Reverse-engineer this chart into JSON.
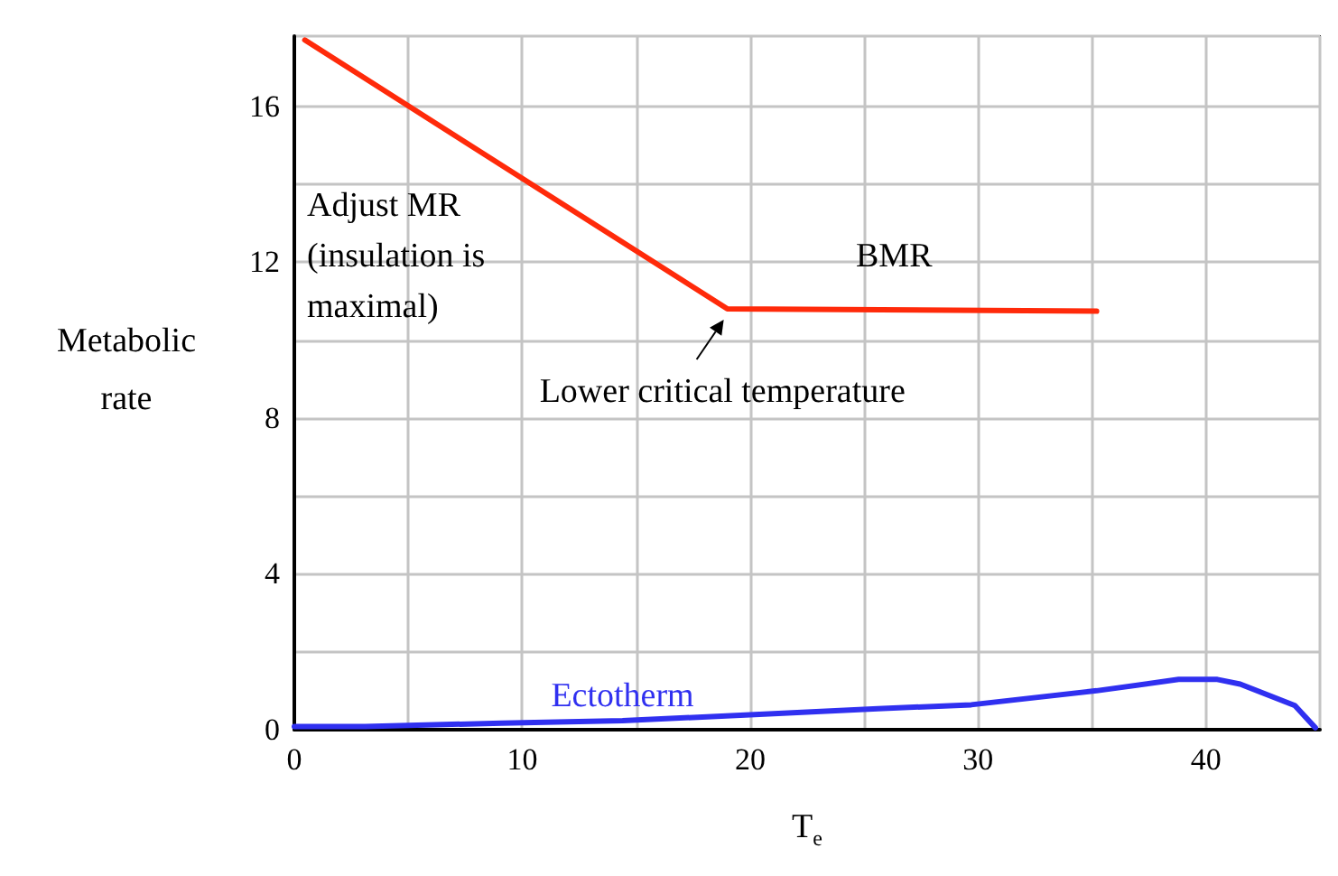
{
  "chart_data": {
    "type": "line",
    "xlabel": "T$_{e}$",
    "ylabel": "Metabolic rate",
    "xlim": [
      0,
      45
    ],
    "xticks": [
      0,
      10,
      20,
      30,
      40
    ],
    "ylim": [
      0,
      17.8
    ],
    "yticks": [
      0,
      4,
      8,
      12,
      16
    ],
    "grid": true,
    "marker": "none",
    "line_style": "solid",
    "series": [
      {
        "color": "#ff2a0a",
        "x": [
          0.46,
          19.0,
          35.2
        ],
        "values": [
          17.7,
          10.8,
          10.74
        ]
      },
      {
        "name": "Ectotherm",
        "color": "#3030f0",
        "x": [
          0,
          3.1,
          9.1,
          14.4,
          20.2,
          25.6,
          29.7,
          35.2,
          38.8,
          40.5,
          41.5,
          43.9,
          44.8
        ],
        "values": [
          0.08,
          0.08,
          0.17,
          0.23,
          0.39,
          0.54,
          0.64,
          1.0,
          1.29,
          1.29,
          1.17,
          0.62,
          0.05
        ]
      }
    ],
    "annotations": [
      "Adjust MR\n(insulation is\nmaximal)",
      "BMR",
      {
        "text": "Lower critical temperature",
        "x": 19.0,
        "y": 10.8
      }
    ]
  }
}
